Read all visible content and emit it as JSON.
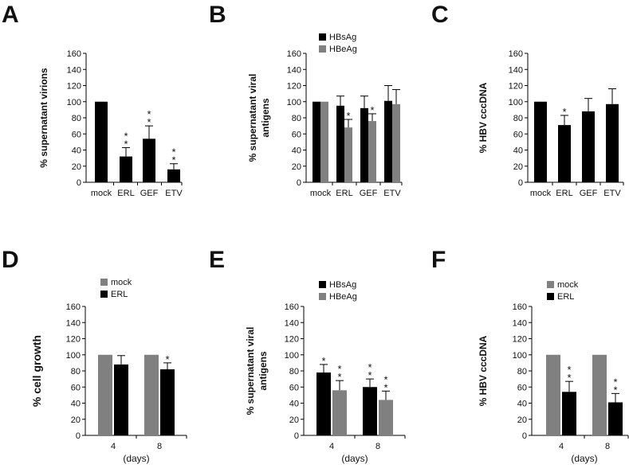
{
  "colors": {
    "dark": "#000000",
    "gray": "#808080",
    "axis": "#000000"
  },
  "chart_data": [
    {
      "panel": "A",
      "type": "bar",
      "ylabel": "% supernatant virions",
      "ylim": [
        0,
        160
      ],
      "yticks": [
        0,
        20,
        40,
        60,
        80,
        100,
        120,
        140,
        160
      ],
      "categories": [
        "mock",
        "ERL",
        "GEF",
        "ETV"
      ],
      "xlabel": "",
      "legend": [],
      "series": [
        {
          "name": "virions",
          "color": "dark",
          "values": [
            100,
            32,
            54,
            16
          ],
          "errors": [
            0,
            11,
            16,
            7
          ],
          "sig": [
            "",
            "**",
            "**",
            "**"
          ]
        }
      ]
    },
    {
      "panel": "B",
      "type": "bar",
      "ylabel": [
        "% supernatant viral",
        "antigens"
      ],
      "ylim": [
        0,
        160
      ],
      "yticks": [
        0,
        20,
        40,
        60,
        80,
        100,
        120,
        140,
        160
      ],
      "categories": [
        "mock",
        "ERL",
        "GEF",
        "ETV"
      ],
      "xlabel": "",
      "legend": [
        "HBsAg",
        "HBeAg"
      ],
      "series": [
        {
          "name": "HBsAg",
          "color": "dark",
          "values": [
            100,
            95,
            92,
            101
          ],
          "errors": [
            0,
            12,
            15,
            19
          ],
          "sig": [
            "",
            "",
            "",
            ""
          ]
        },
        {
          "name": "HBeAg",
          "color": "gray",
          "values": [
            100,
            68,
            76,
            97
          ],
          "errors": [
            0,
            10,
            9,
            18
          ],
          "sig": [
            "",
            "*",
            "*",
            ""
          ]
        }
      ]
    },
    {
      "panel": "C",
      "type": "bar",
      "ylabel": "% HBV cccDNA",
      "ylim": [
        0,
        160
      ],
      "yticks": [
        0,
        20,
        40,
        60,
        80,
        100,
        120,
        140,
        160
      ],
      "categories": [
        "mock",
        "ERL",
        "GEF",
        "ETV"
      ],
      "xlabel": "",
      "legend": [],
      "series": [
        {
          "name": "cccDNA",
          "color": "dark",
          "values": [
            100,
            71,
            88,
            97
          ],
          "errors": [
            0,
            12,
            16,
            19
          ],
          "sig": [
            "",
            "*",
            "",
            ""
          ]
        }
      ]
    },
    {
      "panel": "D",
      "type": "bar",
      "ylabel": "% cell growth",
      "ylim": [
        0,
        160
      ],
      "yticks": [
        0,
        20,
        40,
        60,
        80,
        100,
        120,
        140,
        160
      ],
      "categories": [
        "4",
        "8"
      ],
      "xlabel": "(days)",
      "legend": [
        "mock",
        "ERL"
      ],
      "series": [
        {
          "name": "mock",
          "color": "gray",
          "values": [
            100,
            100
          ],
          "errors": [
            0,
            0
          ],
          "sig": [
            "",
            ""
          ]
        },
        {
          "name": "ERL",
          "color": "dark",
          "values": [
            88,
            82
          ],
          "errors": [
            11,
            8
          ],
          "sig": [
            "",
            "*"
          ]
        }
      ]
    },
    {
      "panel": "E",
      "type": "bar",
      "ylabel": [
        "% supernatant viral",
        "antigens"
      ],
      "ylim": [
        0,
        160
      ],
      "yticks": [
        0,
        20,
        40,
        60,
        80,
        100,
        120,
        140,
        160
      ],
      "categories": [
        "4",
        "8"
      ],
      "xlabel": "(days)",
      "legend": [
        "HBsAg",
        "HBeAg"
      ],
      "series": [
        {
          "name": "HBsAg",
          "color": "dark",
          "values": [
            78,
            60
          ],
          "errors": [
            10,
            10
          ],
          "sig": [
            "*",
            "**"
          ]
        },
        {
          "name": "HBeAg",
          "color": "gray",
          "values": [
            56,
            44
          ],
          "errors": [
            12,
            11
          ],
          "sig": [
            "**",
            "**"
          ]
        }
      ]
    },
    {
      "panel": "F",
      "type": "bar",
      "ylabel": "% HBV cccDNA",
      "ylim": [
        0,
        160
      ],
      "yticks": [
        0,
        20,
        40,
        60,
        80,
        100,
        120,
        140,
        160
      ],
      "categories": [
        "4",
        "8"
      ],
      "xlabel": "(days)",
      "legend": [
        "mock",
        "ERL"
      ],
      "series": [
        {
          "name": "mock",
          "color": "gray",
          "values": [
            100,
            100
          ],
          "errors": [
            0,
            0
          ],
          "sig": [
            "",
            ""
          ]
        },
        {
          "name": "ERL",
          "color": "dark",
          "values": [
            54,
            41
          ],
          "errors": [
            13,
            11
          ],
          "sig": [
            "**",
            "**"
          ]
        }
      ]
    }
  ]
}
